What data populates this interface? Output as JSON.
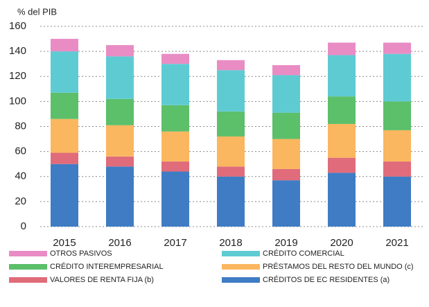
{
  "chart_data": {
    "type": "stacked_bar",
    "y_axis_label": "% del PIB",
    "categories": [
      "2015",
      "2016",
      "2017",
      "2018",
      "2019",
      "2020",
      "2021"
    ],
    "series": [
      {
        "name": "CRÉDITOS DE EC RESIDENTES (a)",
        "color": "#3f7cc4",
        "values": [
          50,
          48,
          44,
          40,
          37,
          43,
          40
        ]
      },
      {
        "name": "VALORES DE RENTA FIJA (b)",
        "color": "#e06b7a",
        "values": [
          9,
          8,
          8,
          8,
          9,
          12,
          12
        ]
      },
      {
        "name": "PRÉSTAMOS DEL RESTO DEL MUNDO (c)",
        "color": "#fbb660",
        "values": [
          27,
          25,
          24,
          24,
          24,
          27,
          25
        ]
      },
      {
        "name": "CRÉDITO INTEREMPRESARIAL",
        "color": "#5cbf6a",
        "values": [
          21,
          21,
          21,
          20,
          21,
          22,
          23
        ]
      },
      {
        "name": "CRÉDITO COMERCIAL",
        "color": "#5ecbd3",
        "values": [
          33,
          34,
          33,
          33,
          30,
          33,
          38
        ]
      },
      {
        "name": "OTROS PASIVOS",
        "color": "#e98cc4",
        "values": [
          10,
          9,
          8,
          8,
          8,
          10,
          9
        ]
      }
    ],
    "ylim": [
      0,
      160
    ],
    "yticks": [
      0,
      20,
      40,
      60,
      80,
      100,
      120,
      140,
      160
    ],
    "grid": true
  }
}
